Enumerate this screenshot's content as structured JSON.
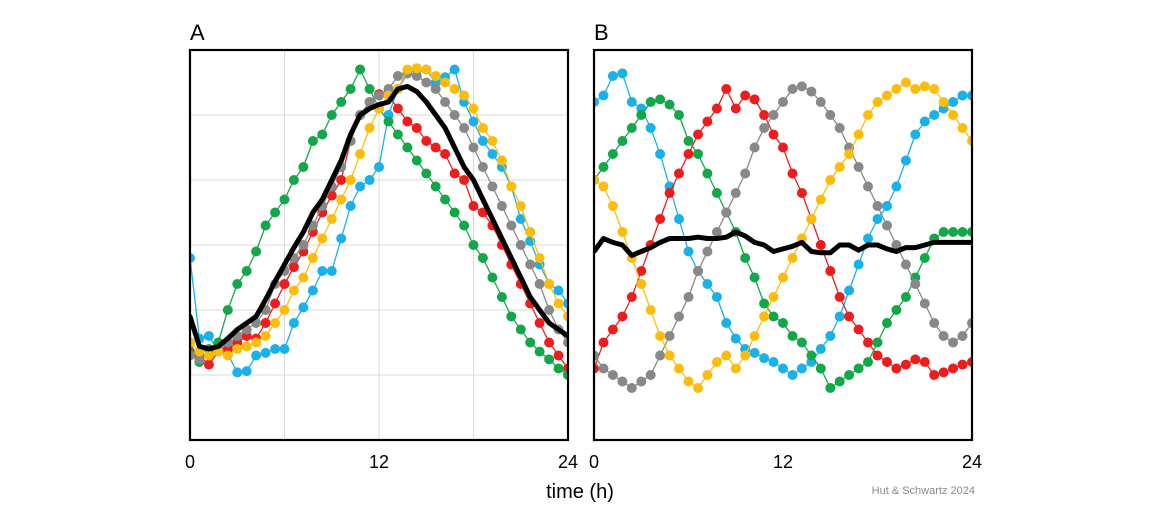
{
  "figure": {
    "xlabel": "time (h)",
    "credit": "Hut & Schwartz 2024"
  },
  "colors": {
    "blue": "#1ab0e8",
    "red": "#ee1c1c",
    "green": "#12a84a",
    "gray": "#888888",
    "yellow": "#fcbc0c",
    "mean": "#000000",
    "grid": "#d9d9d9"
  },
  "chart_data": [
    {
      "type": "line",
      "panel_label": "A",
      "x_tick_labels": [
        "0",
        "12",
        "24"
      ],
      "xlim": [
        0,
        24
      ],
      "ylim": [
        -1.5,
        1.5
      ],
      "grid": true,
      "x": [
        0,
        0.6,
        1.2,
        1.8,
        2.4,
        3,
        3.6,
        4.2,
        4.8,
        5.4,
        6,
        6.6,
        7.2,
        7.8,
        8.4,
        9,
        9.6,
        10.2,
        10.8,
        11.4,
        12,
        12.6,
        13.2,
        13.8,
        14.4,
        15,
        15.6,
        16.2,
        16.8,
        17.4,
        18,
        18.6,
        19.2,
        19.8,
        20.4,
        21,
        21.6,
        22.2,
        22.8,
        23.4,
        24
      ],
      "series": [
        {
          "color": "blue",
          "values": [
            -0.1,
            -0.72,
            -0.7,
            -0.82,
            -0.84,
            -0.98,
            -0.97,
            -0.85,
            -0.83,
            -0.8,
            -0.8,
            -0.6,
            -0.48,
            -0.35,
            -0.2,
            -0.2,
            0.05,
            0.3,
            0.45,
            0.5,
            0.6,
            1,
            1.2,
            1.32,
            1.35,
            1.35,
            1.25,
            1.29,
            1.35,
            1.1,
            0.95,
            0.8,
            0.7,
            0.6,
            0.45,
            0.2,
            0.03,
            -0.15,
            -0.3,
            -0.35,
            -0.45
          ]
        },
        {
          "color": "red",
          "values": [
            -0.82,
            -0.85,
            -0.92,
            -0.82,
            -0.8,
            -0.75,
            -0.7,
            -0.72,
            -0.6,
            -0.45,
            -0.3,
            -0.17,
            -0.05,
            0.1,
            0.25,
            0.38,
            0.5,
            0.8,
            1.0,
            1.1,
            1.16,
            1.15,
            1.05,
            0.95,
            0.9,
            0.8,
            0.75,
            0.7,
            0.55,
            0.5,
            0.3,
            0.25,
            0.15,
            0.0,
            -0.15,
            -0.3,
            -0.45,
            -0.6,
            -0.75,
            -0.85,
            -0.95
          ]
        },
        {
          "color": "green",
          "values": [
            -0.75,
            -0.9,
            -0.8,
            -0.75,
            -0.5,
            -0.3,
            -0.2,
            -0.05,
            0.15,
            0.25,
            0.35,
            0.5,
            0.6,
            0.8,
            0.85,
            1.0,
            1.1,
            1.2,
            1.35,
            1.2,
            1.05,
            0.95,
            0.85,
            0.75,
            0.65,
            0.55,
            0.45,
            0.35,
            0.25,
            0.15,
            0.0,
            -0.1,
            -0.25,
            -0.4,
            -0.55,
            -0.65,
            -0.75,
            -0.82,
            -0.88,
            -0.95,
            -1.0
          ]
        },
        {
          "color": "gray",
          "values": [
            -0.85,
            -0.88,
            -0.85,
            -0.8,
            -0.75,
            -0.7,
            -0.65,
            -0.6,
            -0.5,
            -0.3,
            -0.2,
            -0.1,
            0.0,
            0.15,
            0.3,
            0.45,
            0.6,
            0.8,
            1.0,
            1.1,
            1.15,
            1.2,
            1.3,
            1.32,
            1.3,
            1.25,
            1.2,
            1.1,
            1.0,
            0.9,
            0.75,
            0.6,
            0.45,
            0.3,
            0.15,
            0.0,
            -0.15,
            -0.3,
            -0.5,
            -0.65,
            -0.75
          ]
        },
        {
          "color": "yellow",
          "values": [
            -0.75,
            -0.82,
            -0.85,
            -0.82,
            -0.85,
            -0.8,
            -0.78,
            -0.75,
            -0.7,
            -0.6,
            -0.5,
            -0.35,
            -0.25,
            -0.1,
            0.05,
            0.2,
            0.35,
            0.5,
            0.7,
            0.9,
            1.05,
            1.15,
            1.2,
            1.35,
            1.36,
            1.35,
            1.3,
            1.25,
            1.2,
            1.15,
            1.05,
            0.9,
            0.8,
            0.65,
            0.45,
            0.3,
            0.1,
            -0.1,
            -0.3,
            -0.45,
            -0.55
          ]
        },
        {
          "color": "mean",
          "mean": true,
          "values": [
            -0.55,
            -0.78,
            -0.8,
            -0.78,
            -0.72,
            -0.65,
            -0.6,
            -0.55,
            -0.42,
            -0.28,
            -0.15,
            -0.02,
            0.1,
            0.25,
            0.35,
            0.5,
            0.65,
            0.85,
            1.0,
            1.05,
            1.08,
            1.1,
            1.2,
            1.22,
            1.18,
            1.1,
            1.0,
            0.9,
            0.75,
            0.6,
            0.5,
            0.35,
            0.2,
            0.05,
            -0.1,
            -0.25,
            -0.4,
            -0.5,
            -0.6,
            -0.65,
            -0.7
          ]
        }
      ]
    },
    {
      "type": "line",
      "panel_label": "B",
      "x_tick_labels": [
        "0",
        "12",
        "24"
      ],
      "xlim": [
        0,
        24
      ],
      "ylim": [
        -1.5,
        1.5
      ],
      "grid": false,
      "x": [
        0,
        0.6,
        1.2,
        1.8,
        2.4,
        3,
        3.6,
        4.2,
        4.8,
        5.4,
        6,
        6.6,
        7.2,
        7.8,
        8.4,
        9,
        9.6,
        10.2,
        10.8,
        11.4,
        12,
        12.6,
        13.2,
        13.8,
        14.4,
        15,
        15.6,
        16.2,
        16.8,
        17.4,
        18,
        18.6,
        19.2,
        19.8,
        20.4,
        21,
        21.6,
        22.2,
        22.8,
        23.4,
        24
      ],
      "series": [
        {
          "color": "blue",
          "values": [
            1.1,
            1.15,
            1.3,
            1.32,
            1.1,
            1.05,
            0.9,
            0.7,
            0.45,
            0.2,
            -0.05,
            -0.2,
            -0.3,
            -0.4,
            -0.6,
            -0.72,
            -0.8,
            -0.83,
            -0.87,
            -0.9,
            -0.95,
            -1.0,
            -0.95,
            -0.9,
            -0.8,
            -0.7,
            -0.55,
            -0.35,
            -0.15,
            0.05,
            0.2,
            0.3,
            0.45,
            0.65,
            0.85,
            0.95,
            1.0,
            1.05,
            1.1,
            1.15,
            1.15
          ]
        },
        {
          "color": "red",
          "values": [
            -0.95,
            -0.75,
            -0.65,
            -0.55,
            -0.4,
            -0.2,
            0.0,
            0.2,
            0.4,
            0.55,
            0.7,
            0.85,
            0.95,
            1.05,
            1.2,
            1.05,
            1.15,
            1.12,
            1.0,
            0.85,
            0.75,
            0.55,
            0.4,
            0.2,
            0.0,
            -0.2,
            -0.4,
            -0.55,
            -0.65,
            -0.75,
            -0.85,
            -0.9,
            -0.95,
            -0.92,
            -0.88,
            -0.9,
            -1.0,
            -0.98,
            -0.95,
            -0.92,
            -0.9
          ]
        },
        {
          "color": "green",
          "values": [
            0.5,
            0.6,
            0.7,
            0.8,
            0.9,
            1.0,
            1.1,
            1.12,
            1.08,
            1.0,
            0.8,
            0.7,
            0.55,
            0.4,
            0.25,
            0.1,
            -0.1,
            -0.25,
            -0.45,
            -0.55,
            -0.6,
            -0.7,
            -0.75,
            -0.85,
            -0.95,
            -1.1,
            -1.05,
            -1.0,
            -0.95,
            -0.9,
            -0.75,
            -0.6,
            -0.5,
            -0.4,
            -0.25,
            -0.1,
            0.05,
            0.1,
            0.1,
            0.1,
            0.1
          ]
        },
        {
          "color": "gray",
          "values": [
            -0.85,
            -0.95,
            -1.0,
            -1.05,
            -1.1,
            -1.05,
            -1.0,
            -0.85,
            -0.7,
            -0.55,
            -0.4,
            -0.2,
            -0.05,
            0.1,
            0.25,
            0.4,
            0.55,
            0.75,
            0.9,
            1.0,
            1.1,
            1.2,
            1.22,
            1.18,
            1.1,
            1.0,
            0.9,
            0.75,
            0.6,
            0.45,
            0.3,
            0.15,
            0.0,
            -0.15,
            -0.3,
            -0.45,
            -0.6,
            -0.7,
            -0.75,
            -0.7,
            -0.6
          ]
        },
        {
          "color": "yellow",
          "values": [
            0.5,
            0.45,
            0.3,
            0.1,
            -0.1,
            -0.3,
            -0.5,
            -0.7,
            -0.85,
            -0.95,
            -1.05,
            -1.1,
            -1.0,
            -0.9,
            -0.85,
            -0.95,
            -0.85,
            -0.7,
            -0.55,
            -0.4,
            -0.25,
            -0.1,
            0.05,
            0.2,
            0.35,
            0.5,
            0.6,
            0.7,
            0.85,
            1.0,
            1.1,
            1.15,
            1.2,
            1.25,
            1.2,
            1.22,
            1.2,
            1.1,
            1.0,
            0.9,
            0.8
          ]
        },
        {
          "color": "mean",
          "mean": true,
          "values": [
            -0.05,
            0.05,
            0.02,
            0.0,
            -0.08,
            -0.05,
            -0.02,
            0.02,
            0.05,
            0.05,
            0.05,
            0.06,
            0.05,
            0.05,
            0.06,
            0.1,
            0.07,
            0.02,
            0.0,
            -0.05,
            -0.03,
            -0.01,
            0.02,
            -0.05,
            -0.06,
            -0.06,
            0.0,
            0.0,
            -0.04,
            0.0,
            0.0,
            -0.03,
            -0.05,
            -0.02,
            -0.02,
            0.0,
            0.02,
            0.02,
            0.02,
            0.02,
            0.02
          ]
        }
      ]
    }
  ]
}
